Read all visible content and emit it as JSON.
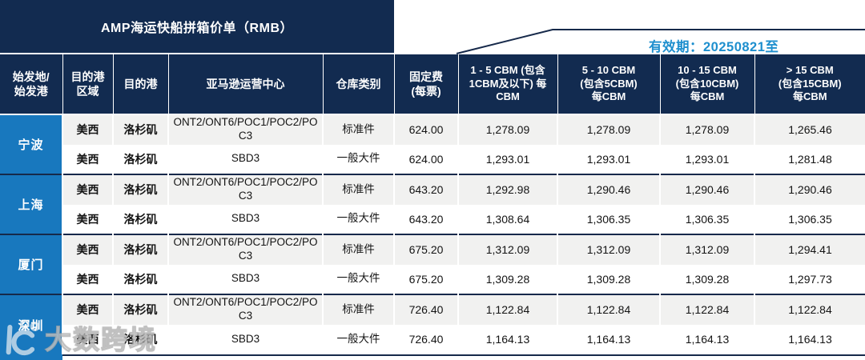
{
  "title": "AMP海运快船拼箱价单（RMB）",
  "validity_text": "有效期：20250821至",
  "watermark_text": "大数跨境",
  "colors": {
    "header_navy": "#122B50",
    "origin_blue": "#1878BE",
    "validity_blue": "#1E8FCE",
    "row_gray": "#F1F1F0",
    "border_dark": "#16294A"
  },
  "table": {
    "columns": [
      "始发地/\n始发港",
      "目的港\n区域",
      "目的港",
      "亚马逊运营中心",
      "仓库类别",
      "固定费\n(每票)",
      "1 - 5 CBM (包含\n1CBM及以下) 每\nCBM",
      "5 - 10 CBM\n(包含5CBM)\n每CBM",
      "10 - 15 CBM\n(包含10CBM)\n每CBM",
      "> 15 CBM\n(包含15CBM)\n每CBM"
    ],
    "groups": [
      {
        "origin": "宁波",
        "rows": [
          {
            "region": "美西",
            "port": "洛杉矶",
            "fulfillment_center": "ONT2/ONT6/POC1/POC2/POC3",
            "warehouse_type": "标准件",
            "fixed_fee": "624.00",
            "prices": [
              "1,278.09",
              "1,278.09",
              "1,278.09",
              "1,265.46"
            ]
          },
          {
            "region": "美西",
            "port": "洛杉矶",
            "fulfillment_center": "SBD3",
            "warehouse_type": "一般大件",
            "fixed_fee": "624.00",
            "prices": [
              "1,293.01",
              "1,293.01",
              "1,293.01",
              "1,281.48"
            ]
          }
        ]
      },
      {
        "origin": "上海",
        "rows": [
          {
            "region": "美西",
            "port": "洛杉矶",
            "fulfillment_center": "ONT2/ONT6/POC1/POC2/POC3",
            "warehouse_type": "标准件",
            "fixed_fee": "643.20",
            "prices": [
              "1,292.98",
              "1,290.46",
              "1,290.46",
              "1,290.46"
            ]
          },
          {
            "region": "美西",
            "port": "洛杉矶",
            "fulfillment_center": "SBD3",
            "warehouse_type": "一般大件",
            "fixed_fee": "643.20",
            "prices": [
              "1,308.64",
              "1,306.35",
              "1,306.35",
              "1,306.35"
            ]
          }
        ]
      },
      {
        "origin": "厦门",
        "rows": [
          {
            "region": "美西",
            "port": "洛杉矶",
            "fulfillment_center": "ONT2/ONT6/POC1/POC2/POC3",
            "warehouse_type": "标准件",
            "fixed_fee": "675.20",
            "prices": [
              "1,312.09",
              "1,312.09",
              "1,312.09",
              "1,294.41"
            ]
          },
          {
            "region": "美西",
            "port": "洛杉矶",
            "fulfillment_center": "SBD3",
            "warehouse_type": "一般大件",
            "fixed_fee": "675.20",
            "prices": [
              "1,309.28",
              "1,309.28",
              "1,309.28",
              "1,297.73"
            ]
          }
        ]
      },
      {
        "origin": "深圳",
        "rows": [
          {
            "region": "美西",
            "port": "洛杉矶",
            "fulfillment_center": "ONT2/ONT6/POC1/POC2/POC3",
            "warehouse_type": "标准件",
            "fixed_fee": "726.40",
            "prices": [
              "1,122.84",
              "1,122.84",
              "1,122.84",
              "1,122.84"
            ]
          },
          {
            "region": "美西",
            "port": "洛杉矶",
            "fulfillment_center": "SBD3",
            "warehouse_type": "一般大件",
            "fixed_fee": "726.40",
            "prices": [
              "1,164.13",
              "1,164.13",
              "1,164.13",
              "1,164.13"
            ]
          }
        ]
      }
    ]
  }
}
